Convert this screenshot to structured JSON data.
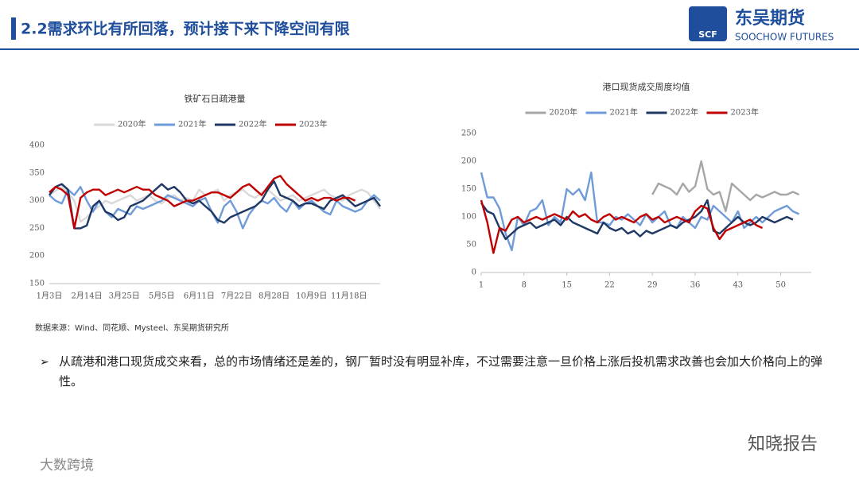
{
  "header": {
    "title": "2.2需求环比有所回落，预计接下来下降空间有限",
    "logo_mark": "SCF",
    "logo_name": "东吴期货",
    "logo_sub": "SOOCHOW FUTURES"
  },
  "chart_data": [
    {
      "type": "line",
      "title": "铁矿石日疏港量",
      "categories": [
        "1月3日",
        null,
        null,
        null,
        null,
        null,
        "2月14日",
        null,
        null,
        null,
        null,
        null,
        "3月25日",
        null,
        null,
        null,
        null,
        null,
        "5月5日",
        null,
        null,
        null,
        null,
        null,
        "6月11日",
        null,
        null,
        null,
        null,
        null,
        "7月22日",
        null,
        null,
        null,
        null,
        null,
        "8月28日",
        null,
        null,
        null,
        null,
        null,
        "10月9日",
        null,
        null,
        null,
        null,
        null,
        "11月18日",
        null,
        null,
        null,
        null,
        null
      ],
      "ylim": [
        150,
        400
      ],
      "yticks": [
        150,
        200,
        250,
        300,
        350,
        400
      ],
      "series": [
        {
          "name": "2020年",
          "color": "#d9d9d9",
          "values": [
            310,
            318,
            325,
            315,
            300,
            262,
            270,
            282,
            290,
            300,
            295,
            300,
            305,
            310,
            300,
            305,
            310,
            300,
            295,
            305,
            310,
            300,
            305,
            300,
            320,
            310,
            315,
            320,
            300,
            310,
            315,
            320,
            310,
            305,
            315,
            320,
            310,
            300,
            305,
            310,
            300,
            305,
            310,
            315,
            320,
            310,
            305,
            300,
            310,
            315,
            320,
            315,
            300,
            285
          ]
        },
        {
          "name": "2021年",
          "color": "#6f9bd8",
          "values": [
            310,
            300,
            295,
            320,
            310,
            325,
            300,
            280,
            300,
            280,
            270,
            285,
            280,
            275,
            290,
            285,
            290,
            295,
            300,
            310,
            305,
            300,
            295,
            290,
            300,
            305,
            280,
            260,
            290,
            300,
            280,
            250,
            275,
            290,
            300,
            295,
            305,
            290,
            280,
            300,
            285,
            295,
            300,
            290,
            280,
            275,
            300,
            290,
            285,
            280,
            285,
            300,
            310,
            300
          ]
        },
        {
          "name": "2022年",
          "color": "#1f3864",
          "values": [
            310,
            325,
            330,
            320,
            250,
            250,
            255,
            290,
            300,
            280,
            275,
            265,
            270,
            290,
            295,
            300,
            310,
            320,
            330,
            320,
            325,
            315,
            300,
            295,
            300,
            290,
            280,
            265,
            260,
            270,
            275,
            280,
            285,
            290,
            300,
            320,
            335,
            310,
            305,
            300,
            290,
            295,
            295,
            290,
            285,
            300,
            305,
            310,
            300,
            290,
            295,
            300,
            305,
            290
          ]
        },
        {
          "name": "2023年",
          "color": "#c00000",
          "values": [
            315,
            325,
            320,
            310,
            250,
            305,
            315,
            320,
            320,
            310,
            315,
            320,
            315,
            320,
            325,
            320,
            320,
            310,
            305,
            300,
            290,
            295,
            300,
            300,
            305,
            310,
            315,
            315,
            310,
            305,
            315,
            325,
            330,
            320,
            310,
            325,
            340,
            345,
            330,
            320,
            310,
            300,
            305,
            300,
            305,
            305,
            300,
            305,
            305,
            300,
            null,
            null,
            null,
            null
          ]
        }
      ]
    },
    {
      "type": "line",
      "title": "港口现货成交周度均值",
      "x": [
        1,
        2,
        3,
        4,
        5,
        6,
        7,
        8,
        9,
        10,
        11,
        12,
        13,
        14,
        15,
        16,
        17,
        18,
        19,
        20,
        21,
        22,
        23,
        24,
        25,
        26,
        27,
        28,
        29,
        30,
        31,
        32,
        33,
        34,
        35,
        36,
        37,
        38,
        39,
        40,
        41,
        42,
        43,
        44,
        45,
        46,
        47,
        48,
        49,
        50,
        51,
        52,
        53
      ],
      "xlim": [
        1,
        55
      ],
      "xticks": [
        1,
        8,
        15,
        22,
        29,
        36,
        43,
        50
      ],
      "ylim": [
        0,
        250
      ],
      "yticks": [
        0,
        50,
        100,
        150,
        200,
        250
      ],
      "series": [
        {
          "name": "2020年",
          "color": "#a6a6a6",
          "values": [
            null,
            null,
            null,
            null,
            null,
            null,
            null,
            null,
            null,
            null,
            null,
            null,
            null,
            null,
            null,
            null,
            null,
            null,
            null,
            null,
            null,
            null,
            null,
            null,
            null,
            null,
            null,
            null,
            140,
            160,
            155,
            150,
            140,
            160,
            145,
            155,
            200,
            150,
            140,
            145,
            110,
            160,
            150,
            140,
            130,
            140,
            135,
            140,
            145,
            140,
            140,
            145,
            140
          ]
        },
        {
          "name": "2021年",
          "color": "#6f9bd8",
          "values": [
            180,
            135,
            135,
            115,
            70,
            40,
            100,
            85,
            110,
            115,
            130,
            85,
            100,
            90,
            150,
            140,
            150,
            130,
            180,
            90,
            90,
            85,
            100,
            95,
            105,
            95,
            85,
            105,
            90,
            100,
            110,
            85,
            80,
            100,
            90,
            80,
            100,
            95,
            120,
            110,
            100,
            90,
            110,
            80,
            90,
            100,
            90,
            100,
            110,
            115,
            120,
            110,
            105
          ]
        },
        {
          "name": "2022年",
          "color": "#1f3864",
          "values": [
            125,
            110,
            105,
            80,
            60,
            70,
            80,
            85,
            90,
            80,
            85,
            90,
            95,
            85,
            100,
            90,
            85,
            80,
            75,
            70,
            90,
            80,
            75,
            80,
            70,
            75,
            65,
            75,
            70,
            75,
            80,
            85,
            80,
            90,
            95,
            100,
            110,
            130,
            75,
            70,
            80,
            90,
            100,
            90,
            85,
            90,
            100,
            95,
            90,
            95,
            100,
            95,
            null
          ]
        },
        {
          "name": "2023年",
          "color": "#c00000",
          "values": [
            130,
            90,
            35,
            80,
            75,
            95,
            100,
            90,
            95,
            100,
            95,
            100,
            105,
            100,
            95,
            110,
            100,
            105,
            95,
            90,
            100,
            105,
            95,
            100,
            95,
            90,
            100,
            105,
            95,
            100,
            90,
            95,
            100,
            95,
            90,
            110,
            120,
            115,
            80,
            60,
            75,
            80,
            85,
            90,
            95,
            85,
            80,
            null,
            null,
            null,
            null,
            null,
            null
          ]
        }
      ]
    }
  ],
  "source": "数据来源：Wind、同花顺、Mysteel、东吴期货研究所",
  "bullet": "从疏港和港口现货成交来看，总的市场情绪还是差的，钢厂暂时没有明显补库，不过需要注意一旦价格上涨后投机需求改善也会加大价格向上的弹性。",
  "watermarks": [
    "知晓报告",
    "大数跨境"
  ]
}
